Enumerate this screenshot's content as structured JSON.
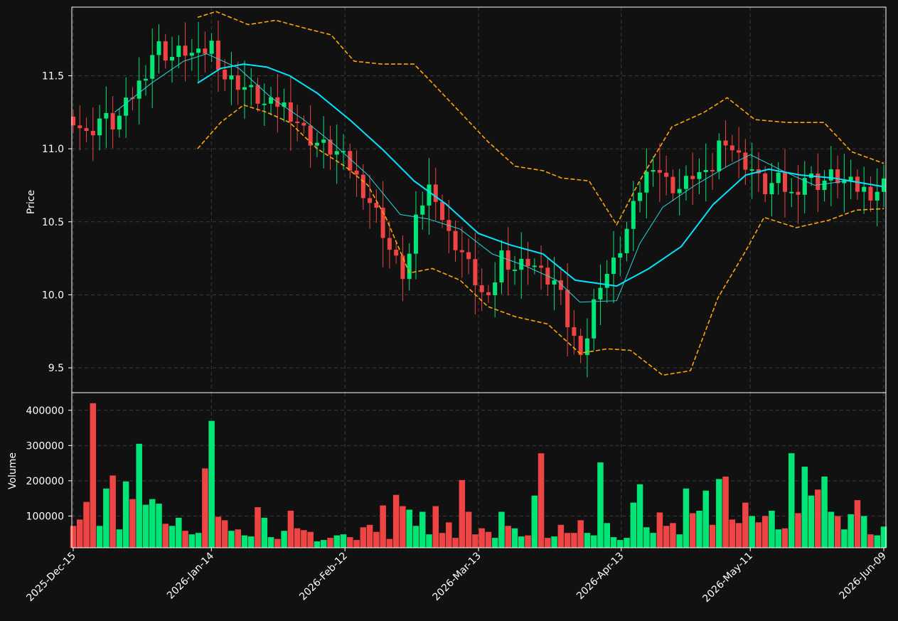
{
  "colors": {
    "background": "#111111",
    "up": "#00e676",
    "down": "#ef4444",
    "ma_fast": "#26d7d7",
    "ma_slow": "#00e5ff",
    "bands": "#ffa500",
    "grid": "#3a3a3a",
    "text": "#ffffff"
  },
  "chart_data": [
    {
      "type": "candlestick",
      "ylabel": "Price",
      "ylim": [
        9.33,
        11.97
      ],
      "y_ticks": [
        "9.5",
        "10.0",
        "10.5",
        "11.0",
        "11.5"
      ],
      "x_start": "2025-12-15",
      "x_end": "2026-06-09",
      "x_ticks": [
        "2025-Dec-15",
        "2026-Jan-14",
        "2026-Feb-12",
        "2026-Mar-13",
        "2026-Apr-13",
        "2026-May-11",
        "2026-Jun-09"
      ],
      "grid": true,
      "anchors": [
        [
          "2025-12-15",
          11.22
        ],
        [
          "2025-12-18",
          11.08
        ],
        [
          "2025-12-21",
          11.22
        ],
        [
          "2025-12-24",
          11.16
        ],
        [
          "2025-12-27",
          11.32
        ],
        [
          "2025-12-30",
          11.48
        ],
        [
          "2026-01-02",
          11.72
        ],
        [
          "2026-01-05",
          11.62
        ],
        [
          "2026-01-08",
          11.68
        ],
        [
          "2026-01-11",
          11.62
        ],
        [
          "2026-01-14",
          11.72
        ],
        [
          "2026-01-17",
          11.48
        ],
        [
          "2026-01-20",
          11.45
        ],
        [
          "2026-01-23",
          11.38
        ],
        [
          "2026-01-26",
          11.28
        ],
        [
          "2026-01-29",
          11.32
        ],
        [
          "2026-02-01",
          11.22
        ],
        [
          "2026-02-04",
          11.08
        ],
        [
          "2026-02-07",
          11.02
        ],
        [
          "2026-02-10",
          10.98
        ],
        [
          "2026-02-13",
          10.88
        ],
        [
          "2026-02-16",
          10.72
        ],
        [
          "2026-02-19",
          10.55
        ],
        [
          "2026-02-22",
          10.28
        ],
        [
          "2026-02-25",
          10.12
        ],
        [
          "2026-02-28",
          10.58
        ],
        [
          "2026-03-03",
          10.78
        ],
        [
          "2026-03-06",
          10.42
        ],
        [
          "2026-03-09",
          10.32
        ],
        [
          "2026-03-12",
          10.12
        ],
        [
          "2026-03-15",
          9.92
        ],
        [
          "2026-03-18",
          10.28
        ],
        [
          "2026-03-21",
          10.18
        ],
        [
          "2026-03-24",
          10.25
        ],
        [
          "2026-03-27",
          10.12
        ],
        [
          "2026-03-30",
          10.08
        ],
        [
          "2026-04-02",
          9.72
        ],
        [
          "2026-04-05",
          9.62
        ],
        [
          "2026-04-08",
          10.08
        ],
        [
          "2026-04-11",
          10.18
        ],
        [
          "2026-04-14",
          10.42
        ],
        [
          "2026-04-17",
          10.72
        ],
        [
          "2026-04-20",
          10.92
        ],
        [
          "2026-04-23",
          10.76
        ],
        [
          "2026-04-26",
          10.72
        ],
        [
          "2026-04-29",
          10.85
        ],
        [
          "2026-05-02",
          10.78
        ],
        [
          "2026-05-05",
          11.12
        ],
        [
          "2026-05-08",
          10.95
        ],
        [
          "2026-05-11",
          10.88
        ],
        [
          "2026-05-14",
          10.72
        ],
        [
          "2026-05-17",
          10.78
        ],
        [
          "2026-05-20",
          10.68
        ],
        [
          "2026-05-23",
          10.82
        ],
        [
          "2026-05-26",
          10.76
        ],
        [
          "2026-05-29",
          10.82
        ],
        [
          "2026-06-01",
          10.76
        ],
        [
          "2026-06-04",
          10.72
        ],
        [
          "2026-06-07",
          10.7
        ],
        [
          "2026-06-09",
          10.76
        ]
      ],
      "ma_fast": [
        [
          "2025-12-24",
          11.25
        ],
        [
          "2026-01-01",
          11.45
        ],
        [
          "2026-01-08",
          11.6
        ],
        [
          "2026-01-13",
          11.65
        ],
        [
          "2026-01-20",
          11.55
        ],
        [
          "2026-01-27",
          11.35
        ],
        [
          "2026-02-03",
          11.2
        ],
        [
          "2026-02-10",
          11.02
        ],
        [
          "2026-02-17",
          10.82
        ],
        [
          "2026-02-24",
          10.55
        ],
        [
          "2026-03-02",
          10.52
        ],
        [
          "2026-03-09",
          10.45
        ],
        [
          "2026-03-16",
          10.28
        ],
        [
          "2026-03-23",
          10.2
        ],
        [
          "2026-03-30",
          10.1
        ],
        [
          "2026-04-04",
          9.95
        ],
        [
          "2026-04-12",
          9.96
        ],
        [
          "2026-04-17",
          10.35
        ],
        [
          "2026-04-22",
          10.6
        ],
        [
          "2026-04-29",
          10.75
        ],
        [
          "2026-05-06",
          10.88
        ],
        [
          "2026-05-11",
          10.96
        ],
        [
          "2026-05-18",
          10.85
        ],
        [
          "2026-05-25",
          10.75
        ],
        [
          "2026-06-01",
          10.78
        ],
        [
          "2026-06-09",
          10.74
        ]
      ],
      "ma_slow": [
        [
          "2026-01-11",
          11.45
        ],
        [
          "2026-01-16",
          11.55
        ],
        [
          "2026-01-21",
          11.58
        ],
        [
          "2026-01-26",
          11.56
        ],
        [
          "2026-01-31",
          11.5
        ],
        [
          "2026-02-06",
          11.38
        ],
        [
          "2026-02-13",
          11.2
        ],
        [
          "2026-02-20",
          11.0
        ],
        [
          "2026-02-27",
          10.78
        ],
        [
          "2026-03-06",
          10.62
        ],
        [
          "2026-03-13",
          10.42
        ],
        [
          "2026-03-20",
          10.34
        ],
        [
          "2026-03-27",
          10.28
        ],
        [
          "2026-04-03",
          10.1
        ],
        [
          "2026-04-12",
          10.06
        ],
        [
          "2026-04-19",
          10.18
        ],
        [
          "2026-04-26",
          10.33
        ],
        [
          "2026-05-03",
          10.62
        ],
        [
          "2026-05-10",
          10.82
        ],
        [
          "2026-05-15",
          10.86
        ],
        [
          "2026-05-22",
          10.82
        ],
        [
          "2026-05-29",
          10.8
        ],
        [
          "2026-06-09",
          10.74
        ]
      ],
      "band_upper": [
        [
          "2026-01-11",
          11.9
        ],
        [
          "2026-01-15",
          11.94
        ],
        [
          "2026-01-22",
          11.85
        ],
        [
          "2026-01-28",
          11.88
        ],
        [
          "2026-02-04",
          11.82
        ],
        [
          "2026-02-09",
          11.78
        ],
        [
          "2026-02-14",
          11.6
        ],
        [
          "2026-02-20",
          11.58
        ],
        [
          "2026-02-27",
          11.58
        ],
        [
          "2026-03-03",
          11.45
        ],
        [
          "2026-03-09",
          11.25
        ],
        [
          "2026-03-15",
          11.05
        ],
        [
          "2026-03-21",
          10.88
        ],
        [
          "2026-03-27",
          10.85
        ],
        [
          "2026-03-31",
          10.8
        ],
        [
          "2026-04-06",
          10.78
        ],
        [
          "2026-04-12",
          10.48
        ],
        [
          "2026-04-17",
          10.78
        ],
        [
          "2026-04-24",
          11.15
        ],
        [
          "2026-05-01",
          11.25
        ],
        [
          "2026-05-06",
          11.35
        ],
        [
          "2026-05-12",
          11.2
        ],
        [
          "2026-05-19",
          11.18
        ],
        [
          "2026-05-27",
          11.18
        ],
        [
          "2026-06-02",
          10.98
        ],
        [
          "2026-06-09",
          10.9
        ]
      ],
      "band_lower": [
        [
          "2026-01-11",
          11.0
        ],
        [
          "2026-01-16",
          11.18
        ],
        [
          "2026-01-21",
          11.3
        ],
        [
          "2026-01-26",
          11.25
        ],
        [
          "2026-01-31",
          11.18
        ],
        [
          "2026-02-06",
          11.0
        ],
        [
          "2026-02-12",
          10.88
        ],
        [
          "2026-02-17",
          10.75
        ],
        [
          "2026-02-21",
          10.52
        ],
        [
          "2026-02-26",
          10.15
        ],
        [
          "2026-03-03",
          10.18
        ],
        [
          "2026-03-09",
          10.1
        ],
        [
          "2026-03-15",
          9.92
        ],
        [
          "2026-03-21",
          9.85
        ],
        [
          "2026-03-28",
          9.8
        ],
        [
          "2026-04-04",
          9.6
        ],
        [
          "2026-04-10",
          9.63
        ],
        [
          "2026-04-15",
          9.62
        ],
        [
          "2026-04-22",
          9.45
        ],
        [
          "2026-04-28",
          9.48
        ],
        [
          "2026-05-04",
          9.98
        ],
        [
          "2026-05-10",
          10.3
        ],
        [
          "2026-05-14",
          10.53
        ],
        [
          "2026-05-21",
          10.46
        ],
        [
          "2026-05-28",
          10.51
        ],
        [
          "2026-06-03",
          10.58
        ],
        [
          "2026-06-09",
          10.59
        ]
      ]
    },
    {
      "type": "bar",
      "ylabel": "Volume",
      "ylim": [
        10000,
        450000
      ],
      "y_ticks": [
        "100000",
        "200000",
        "300000",
        "400000"
      ],
      "grid": true,
      "values": [
        72000,
        90000,
        140000,
        420000,
        72000,
        178000,
        215000,
        62000,
        198000,
        148000,
        305000,
        132000,
        148000,
        135000,
        78000,
        72000,
        95000,
        58000,
        48000,
        52000,
        235000,
        370000,
        98000,
        88000,
        58000,
        62000,
        45000,
        42000,
        125000,
        95000,
        40000,
        35000,
        58000,
        115000,
        65000,
        60000,
        55000,
        28000,
        32000,
        38000,
        45000,
        48000,
        40000,
        32000,
        68000,
        75000,
        55000,
        130000,
        35000,
        160000,
        128000,
        118000,
        72000,
        112000,
        48000,
        128000,
        52000,
        82000,
        38000,
        202000,
        112000,
        48000,
        65000,
        55000,
        38000,
        112000,
        72000,
        65000,
        42000,
        45000,
        158000,
        278000,
        38000,
        42000,
        75000,
        52000,
        52000,
        88000,
        52000,
        45000,
        252000,
        80000,
        40000,
        32000,
        38000,
        138000,
        190000,
        68000,
        52000,
        110000,
        72000,
        80000,
        48000,
        178000,
        108000,
        115000,
        172000,
        75000,
        205000,
        212000,
        90000,
        80000,
        138000,
        100000,
        82000,
        100000,
        115000,
        62000,
        65000,
        278000,
        108000,
        240000,
        158000,
        175000,
        212000,
        112000,
        100000,
        62000,
        105000,
        145000,
        100000,
        48000,
        45000,
        70000
      ]
    }
  ]
}
